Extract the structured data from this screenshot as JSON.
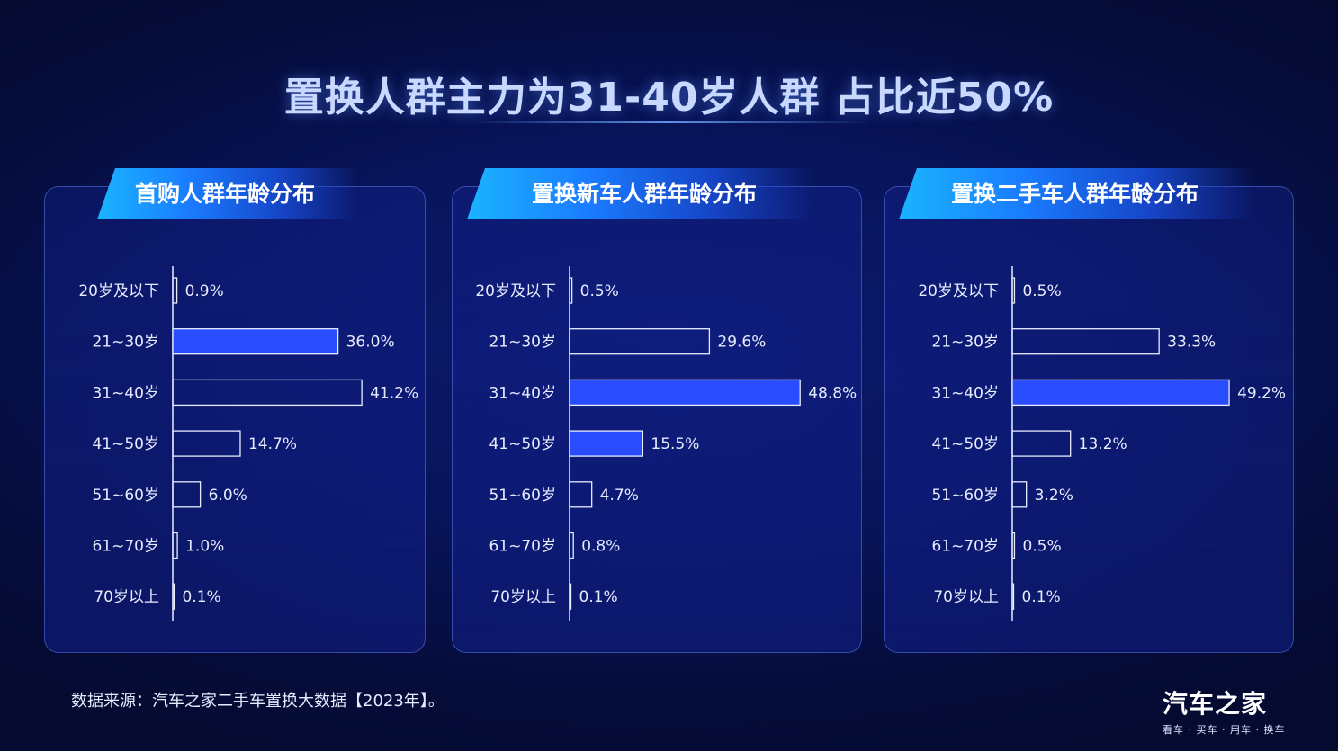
{
  "title": "置换人群主力为31-40岁人群  占比近50%",
  "footnote": "数据来源：汽车之家二手车置换大数据【2023年】。",
  "logo": {
    "name": "汽车之家",
    "slogan": "看车 · 买车 · 用车 · 换车"
  },
  "colors": {
    "highlight_bar": "#2a4cff",
    "outline_bar": "#e8ecff"
  },
  "chart_data": [
    {
      "type": "bar",
      "orientation": "horizontal",
      "title": "首购人群年龄分布",
      "categories": [
        "20岁及以下",
        "21~30岁",
        "31~40岁",
        "41~50岁",
        "51~60岁",
        "61~70岁",
        "70岁以上"
      ],
      "values": [
        0.9,
        36.0,
        41.2,
        14.7,
        6.0,
        1.0,
        0.1
      ],
      "labels": [
        "0.9%",
        "36.0%",
        "41.2%",
        "14.7%",
        "6.0%",
        "1.0%",
        "0.1%"
      ],
      "highlighted": [
        "21~30岁"
      ]
    },
    {
      "type": "bar",
      "orientation": "horizontal",
      "title": "置换新车人群年龄分布",
      "categories": [
        "20岁及以下",
        "21~30岁",
        "31~40岁",
        "41~50岁",
        "51~60岁",
        "61~70岁",
        "70岁以上"
      ],
      "values": [
        0.5,
        29.6,
        48.8,
        15.5,
        4.7,
        0.8,
        0.1
      ],
      "labels": [
        "0.5%",
        "29.6%",
        "48.8%",
        "15.5%",
        "4.7%",
        "0.8%",
        "0.1%"
      ],
      "highlighted": [
        "31~40岁",
        "41~50岁"
      ]
    },
    {
      "type": "bar",
      "orientation": "horizontal",
      "title": "置换二手车人群年龄分布",
      "categories": [
        "20岁及以下",
        "21~30岁",
        "31~40岁",
        "41~50岁",
        "51~60岁",
        "61~70岁",
        "70岁以上"
      ],
      "values": [
        0.5,
        33.3,
        49.2,
        13.2,
        3.2,
        0.5,
        0.1
      ],
      "labels": [
        "0.5%",
        "33.3%",
        "49.2%",
        "13.2%",
        "3.2%",
        "0.5%",
        "0.1%"
      ],
      "highlighted": [
        "31~40岁"
      ]
    }
  ]
}
